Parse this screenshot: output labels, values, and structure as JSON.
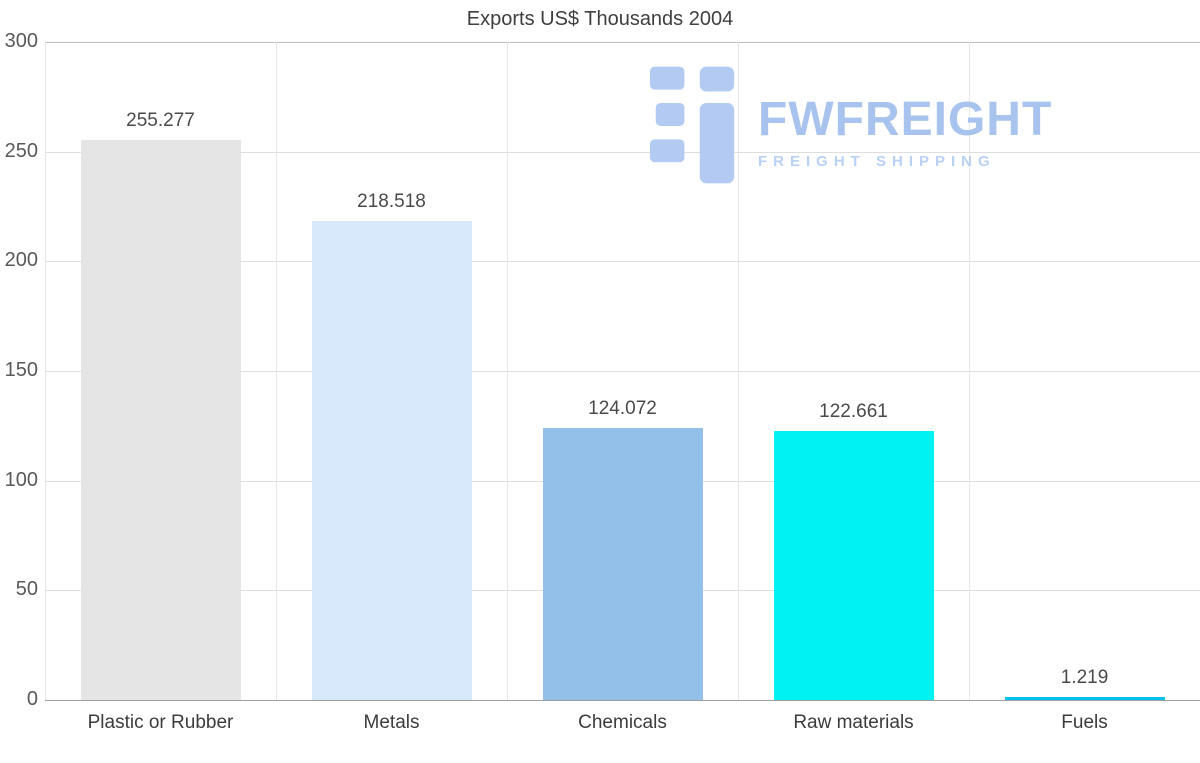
{
  "chart_data": {
    "type": "bar",
    "title": "Exports US$ Thousands 2004",
    "categories": [
      "Plastic or Rubber",
      "Metals",
      "Chemicals",
      "Raw materials",
      "Fuels"
    ],
    "values": [
      255.277,
      218.518,
      124.072,
      122.661,
      1.219
    ],
    "value_labels": [
      "255.277",
      "218.518",
      "124.072",
      "122.661",
      "1.219"
    ],
    "bar_colors": [
      "#e5e5e5",
      "#d7e9fb",
      "#92c0e8",
      "#00f2f2",
      "#00c0f0"
    ],
    "ylim": [
      0,
      300
    ],
    "yticks": [
      0,
      50,
      100,
      150,
      200,
      250,
      300
    ],
    "xlabel": "",
    "ylabel": "",
    "grid": true,
    "legend": "none"
  },
  "logo": {
    "brand": "FWFREIGHT",
    "tagline": "FREIGHT SHIPPING",
    "brand_color": "#a8c3ee",
    "tagline_color": "#b9d1f5",
    "icon_color": "#b3cbf2"
  }
}
